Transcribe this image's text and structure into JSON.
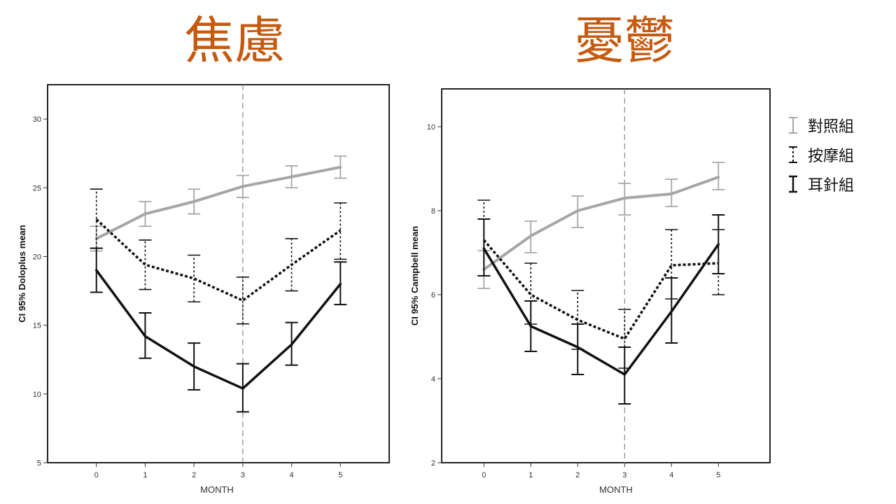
{
  "titles": {
    "left": "焦慮",
    "right": "憂鬱"
  },
  "legend": [
    {
      "label": "對照組",
      "color": "#A6A6A6",
      "style": "solid"
    },
    {
      "label": "按摩組",
      "color": "#111111",
      "style": "dashed"
    },
    {
      "label": "耳針組",
      "color": "#111111",
      "style": "solid"
    }
  ],
  "chart_data": [
    {
      "type": "line",
      "xlabel": "MONTH",
      "ylabel": "CI 95% Doloplus mean",
      "x": [
        0,
        1,
        2,
        3,
        4,
        5
      ],
      "xlim": [
        -1,
        6
      ],
      "ylim": [
        5,
        32.5
      ],
      "yticks": [
        5,
        10,
        15,
        20,
        25,
        30
      ],
      "reference_line_x": 3,
      "series": [
        {
          "name": "對照組",
          "values": [
            21.3,
            23.1,
            24.0,
            25.1,
            25.8,
            26.5
          ],
          "lower": [
            20.4,
            22.2,
            23.1,
            24.3,
            25.0,
            25.7
          ],
          "upper": [
            22.2,
            24.0,
            24.9,
            25.9,
            26.6,
            27.3
          ]
        },
        {
          "name": "按摩組",
          "values": [
            22.7,
            19.4,
            18.4,
            16.8,
            19.4,
            21.9
          ],
          "lower": [
            20.6,
            17.6,
            16.7,
            15.1,
            17.5,
            19.8
          ],
          "upper": [
            24.9,
            21.2,
            20.1,
            18.5,
            21.3,
            23.9
          ]
        },
        {
          "name": "耳針組",
          "values": [
            19.0,
            14.2,
            12.0,
            10.4,
            13.6,
            18.0
          ],
          "lower": [
            17.4,
            12.6,
            10.3,
            8.7,
            12.1,
            16.5
          ],
          "upper": [
            20.6,
            15.9,
            13.7,
            12.2,
            15.2,
            19.6
          ]
        }
      ]
    },
    {
      "type": "line",
      "xlabel": "MONTH",
      "ylabel": "CI 95% Campbell mean",
      "x": [
        0,
        1,
        2,
        3,
        4,
        5
      ],
      "xlim": [
        -0.9,
        6.1
      ],
      "ylim": [
        2,
        10.9
      ],
      "yticks": [
        2,
        4,
        6,
        8,
        10
      ],
      "reference_line_x": 3,
      "series": [
        {
          "name": "對照組",
          "values": [
            6.6,
            7.4,
            8.0,
            8.3,
            8.4,
            8.8
          ],
          "lower": [
            6.15,
            7.0,
            7.6,
            7.9,
            8.1,
            8.5
          ],
          "upper": [
            7.05,
            7.75,
            8.35,
            8.65,
            8.75,
            9.15
          ]
        },
        {
          "name": "按摩組",
          "values": [
            7.3,
            6.0,
            5.4,
            4.95,
            6.7,
            6.75
          ],
          "lower": [
            6.45,
            5.3,
            4.7,
            4.25,
            5.9,
            6.0
          ],
          "upper": [
            8.25,
            6.75,
            6.1,
            5.65,
            7.55,
            7.55
          ]
        },
        {
          "name": "耳針組",
          "values": [
            7.1,
            5.25,
            4.75,
            4.1,
            5.6,
            7.2
          ],
          "lower": [
            6.45,
            4.65,
            4.1,
            3.4,
            4.85,
            6.5
          ],
          "upper": [
            7.8,
            5.85,
            5.3,
            4.75,
            6.4,
            7.9
          ]
        }
      ]
    }
  ]
}
